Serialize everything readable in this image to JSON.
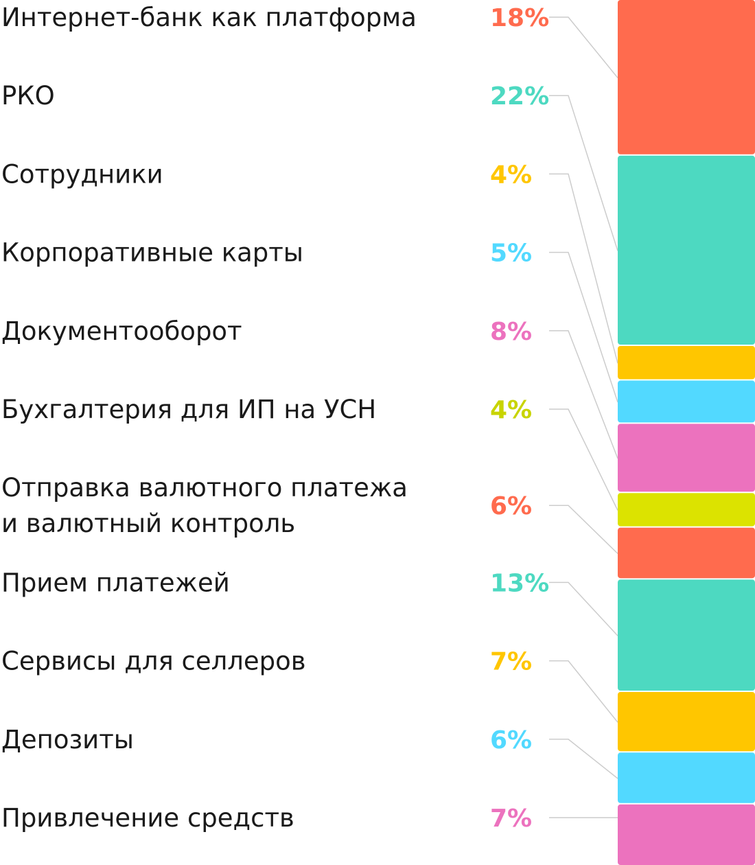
{
  "chart_data": {
    "type": "bar",
    "orientation": "stacked-vertical",
    "unit": "%",
    "categories": [
      "Интернет-банк как платформа",
      "РКО",
      "Сотрудники",
      "Корпоративные карты",
      "Документооборот",
      "Бухгалтерия для ИП на УСН",
      "Отправка валютного платежа и валютный контроль",
      "Прием платежей",
      "Сервисы для селлеров",
      "Депозиты",
      "Привлечение средств"
    ],
    "label_lines": [
      [
        "Интернет-банк как платформа"
      ],
      [
        "РКО"
      ],
      [
        "Сотрудники"
      ],
      [
        "Корпоративные карты"
      ],
      [
        "Документооборот"
      ],
      [
        "Бухгалтерия для ИП на УСН"
      ],
      [
        "Отправка валютного платежа",
        "и валютный контроль"
      ],
      [
        "Прием платежей"
      ],
      [
        "Сервисы для селлеров"
      ],
      [
        "Депозиты"
      ],
      [
        "Привлечение средств"
      ]
    ],
    "values": [
      18,
      22,
      4,
      5,
      8,
      4,
      6,
      13,
      7,
      6,
      7
    ],
    "value_labels": [
      "18%",
      "22%",
      "4%",
      "5%",
      "8%",
      "4%",
      "6%",
      "13%",
      "7%",
      "6%",
      "7%"
    ],
    "colors": [
      "#ff6b4e",
      "#4dd9c1",
      "#ffc600",
      "#52d9ff",
      "#ec72be",
      "#dce300",
      "#ff6b4e",
      "#4dd9c1",
      "#ffc600",
      "#52d9ff",
      "#ec72be"
    ],
    "value_label_colors": [
      "#ff6b4e",
      "#4dd9c1",
      "#ffc600",
      "#52d9ff",
      "#ec72be",
      "#c8d400",
      "#ff6b4e",
      "#4dd9c1",
      "#ffc600",
      "#52d9ff",
      "#ec72be"
    ],
    "connector_color": "#cccccc",
    "xlabel": "",
    "ylabel": ""
  }
}
